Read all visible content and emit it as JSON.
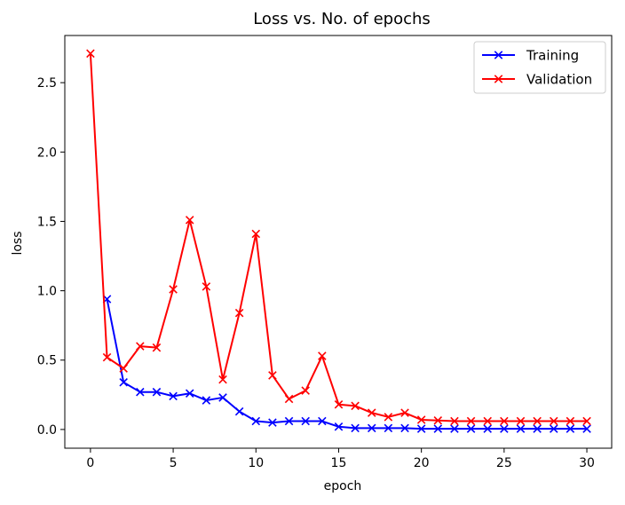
{
  "chart_data": {
    "type": "line",
    "title": "Loss vs. No. of epochs",
    "xlabel": "epoch",
    "ylabel": "loss",
    "xlim": [
      -1.55,
      31.5
    ],
    "ylim": [
      -0.135,
      2.84
    ],
    "xticks": [
      0,
      5,
      10,
      15,
      20,
      25,
      30
    ],
    "xtick_labels": [
      "0",
      "5",
      "10",
      "15",
      "20",
      "25",
      "30"
    ],
    "yticks": [
      0.0,
      0.5,
      1.0,
      1.5,
      2.0,
      2.5
    ],
    "ytick_labels": [
      "0.0",
      "0.5",
      "1.0",
      "1.5",
      "2.0",
      "2.5"
    ],
    "grid": false,
    "legend_position": "top-right",
    "marker": "x",
    "series": [
      {
        "name": "Training",
        "color": "#0000ff",
        "x": [
          1,
          2,
          3,
          4,
          5,
          6,
          7,
          8,
          9,
          10,
          11,
          12,
          13,
          14,
          15,
          16,
          17,
          18,
          19,
          20,
          21,
          22,
          23,
          24,
          25,
          26,
          27,
          28,
          29,
          30
        ],
        "values": [
          0.94,
          0.34,
          0.27,
          0.27,
          0.24,
          0.26,
          0.21,
          0.23,
          0.13,
          0.06,
          0.05,
          0.06,
          0.06,
          0.06,
          0.02,
          0.01,
          0.01,
          0.01,
          0.01,
          0.005,
          0.005,
          0.005,
          0.005,
          0.005,
          0.005,
          0.005,
          0.005,
          0.005,
          0.005,
          0.005
        ]
      },
      {
        "name": "Validation",
        "color": "#ff0000",
        "x": [
          0,
          1,
          2,
          3,
          4,
          5,
          6,
          7,
          8,
          9,
          10,
          11,
          12,
          13,
          14,
          15,
          16,
          17,
          18,
          19,
          20,
          21,
          22,
          23,
          24,
          25,
          26,
          27,
          28,
          29,
          30
        ],
        "values": [
          2.71,
          0.52,
          0.44,
          0.6,
          0.59,
          1.01,
          1.51,
          1.03,
          0.36,
          0.84,
          1.41,
          0.39,
          0.22,
          0.28,
          0.53,
          0.18,
          0.17,
          0.12,
          0.09,
          0.12,
          0.07,
          0.065,
          0.06,
          0.06,
          0.06,
          0.06,
          0.06,
          0.06,
          0.06,
          0.06,
          0.06
        ]
      }
    ]
  }
}
